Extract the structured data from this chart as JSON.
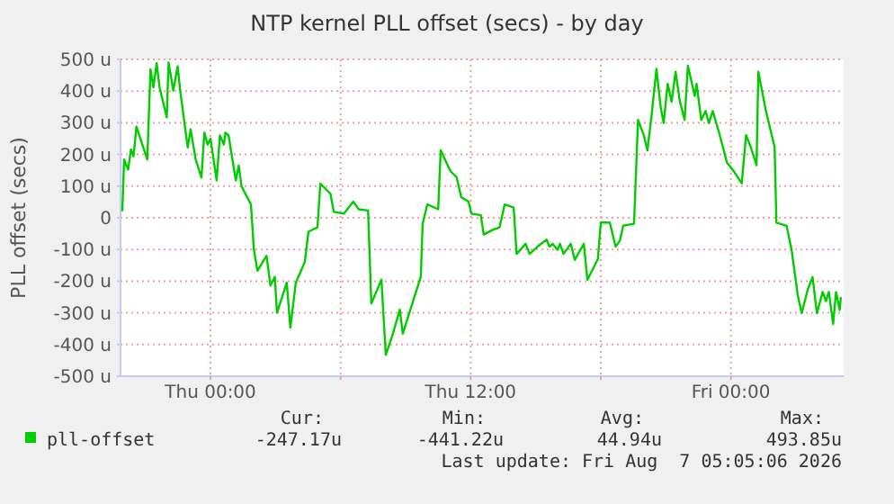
{
  "chart_data": {
    "type": "line",
    "title": "NTP kernel PLL offset (secs) - by day",
    "ylabel": "PLL offset (secs)",
    "xlim": [
      "2026-08-05T19:51",
      "2026-08-07T05:12"
    ],
    "ylim": [
      -500,
      500
    ],
    "xticks": [
      {
        "value": "2026-08-06T00:00",
        "label": "Thu 00:00"
      },
      {
        "value": "2026-08-06T06:00",
        "label": null
      },
      {
        "value": "2026-08-06T12:00",
        "label": "Thu 12:00"
      },
      {
        "value": "2026-08-06T18:00",
        "label": null
      },
      {
        "value": "2026-08-07T00:00",
        "label": "Fri 00:00"
      }
    ],
    "yticks": [
      {
        "value": -500,
        "label": "-500 u"
      },
      {
        "value": -400,
        "label": "-400 u"
      },
      {
        "value": -300,
        "label": "-300 u"
      },
      {
        "value": -200,
        "label": "-200 u"
      },
      {
        "value": -100,
        "label": "-100 u"
      },
      0,
      {
        "value": 100,
        "label": "100 u"
      },
      {
        "value": 200,
        "label": "200 u"
      },
      {
        "value": 300,
        "label": "300 u"
      },
      {
        "value": 400,
        "label": "400 u"
      },
      {
        "value": 500,
        "label": "500 u"
      }
    ],
    "grid": true,
    "legend": "bottom",
    "marker": "none",
    "line_style": "solid",
    "annotations": [
      "Cur:",
      "Min:",
      "Avg:",
      "Max:",
      "-247.17u",
      "-441.22u",
      "44.94u",
      "493.85u",
      "Last update: Fri Aug  7 05:05:06 2026"
    ],
    "series": [
      {
        "name": "pll-offset",
        "color": "#00cc00",
        "x": [
          "2026-08-05T19:56",
          "2026-08-05T20:01",
          "2026-08-05T20:12",
          "2026-08-05T20:20",
          "2026-08-05T20:27",
          "2026-08-05T20:35",
          "2026-08-05T21:05",
          "2026-08-05T21:14",
          "2026-08-05T21:22",
          "2026-08-05T21:31",
          "2026-08-05T21:39",
          "2026-08-05T21:59",
          "2026-08-05T22:04",
          "2026-08-05T22:17",
          "2026-08-05T22:29",
          "2026-08-05T22:37",
          "2026-08-05T22:57",
          "2026-08-05T23:05",
          "2026-08-05T23:19",
          "2026-08-05T23:35",
          "2026-08-05T23:43",
          "2026-08-05T23:52",
          "2026-08-06T00:00",
          "2026-08-06T00:17",
          "2026-08-06T00:26",
          "2026-08-06T00:37",
          "2026-08-06T00:41",
          "2026-08-06T00:50",
          "2026-08-06T00:58",
          "2026-08-06T01:10",
          "2026-08-06T01:18",
          "2026-08-06T01:26",
          "2026-08-06T01:52",
          "2026-08-06T02:00",
          "2026-08-06T02:10",
          "2026-08-06T02:35",
          "2026-08-06T02:46",
          "2026-08-06T02:58",
          "2026-08-06T03:04",
          "2026-08-06T03:31",
          "2026-08-06T03:41",
          "2026-08-06T03:56",
          "2026-08-06T04:21",
          "2026-08-06T04:31",
          "2026-08-06T04:56",
          "2026-08-06T05:04",
          "2026-08-06T05:32",
          "2026-08-06T05:41",
          "2026-08-06T06:09",
          "2026-08-06T06:22",
          "2026-08-06T06:35",
          "2026-08-06T06:50",
          "2026-08-06T07:16",
          "2026-08-06T07:25",
          "2026-08-06T07:53",
          "2026-08-06T08:05",
          "2026-08-06T08:22",
          "2026-08-06T08:44",
          "2026-08-06T08:52",
          "2026-08-06T09:42",
          "2026-08-06T09:47",
          "2026-08-06T10:00",
          "2026-08-06T10:30",
          "2026-08-06T10:37",
          "2026-08-06T11:04",
          "2026-08-06T11:21",
          "2026-08-06T11:34",
          "2026-08-06T11:54",
          "2026-08-06T12:02",
          "2026-08-06T12:28",
          "2026-08-06T12:36",
          "2026-08-06T13:01",
          "2026-08-06T13:20",
          "2026-08-06T13:34",
          "2026-08-06T13:59",
          "2026-08-06T14:07",
          "2026-08-06T14:32",
          "2026-08-06T14:43",
          "2026-08-06T15:05",
          "2026-08-06T15:30",
          "2026-08-06T15:38",
          "2026-08-06T15:47",
          "2026-08-06T16:00",
          "2026-08-06T16:07",
          "2026-08-06T16:17",
          "2026-08-06T16:37",
          "2026-08-06T16:48",
          "2026-08-06T17:13",
          "2026-08-06T17:23",
          "2026-08-06T17:52",
          "2026-08-06T18:00",
          "2026-08-06T18:25",
          "2026-08-06T18:41",
          "2026-08-06T18:53",
          "2026-08-06T19:02",
          "2026-08-06T19:32",
          "2026-08-06T19:43",
          "2026-08-06T19:59",
          "2026-08-06T20:09",
          "2026-08-06T20:21",
          "2026-08-06T20:34",
          "2026-08-06T20:46",
          "2026-08-06T20:54",
          "2026-08-06T21:05",
          "2026-08-06T21:16",
          "2026-08-06T21:27",
          "2026-08-06T21:39",
          "2026-08-06T21:52",
          "2026-08-06T22:01",
          "2026-08-06T22:20",
          "2026-08-06T22:25",
          "2026-08-06T22:38",
          "2026-08-06T22:50",
          "2026-08-06T22:59",
          "2026-08-06T23:10",
          "2026-08-06T23:27",
          "2026-08-06T23:49",
          "2026-08-07T00:08",
          "2026-08-07T00:30",
          "2026-08-07T00:42",
          "2026-08-07T00:55",
          "2026-08-07T01:11",
          "2026-08-07T01:16",
          "2026-08-07T01:37",
          "2026-08-07T02:01",
          "2026-08-07T02:06",
          "2026-08-07T02:34",
          "2026-08-07T02:48",
          "2026-08-07T03:05",
          "2026-08-07T03:16",
          "2026-08-07T03:33",
          "2026-08-07T03:46",
          "2026-08-07T03:58",
          "2026-08-07T04:14",
          "2026-08-07T04:23",
          "2026-08-07T04:31",
          "2026-08-07T04:43",
          "2026-08-07T04:51",
          "2026-08-07T05:01",
          "2026-08-07T05:04"
        ],
        "values": [
          23,
          184,
          152,
          216,
          194,
          288,
          184,
          469,
          412,
          488,
          412,
          317,
          490,
          402,
          478,
          393,
          222,
          279,
          184,
          127,
          269,
          231,
          250,
          118,
          260,
          231,
          269,
          260,
          203,
          118,
          165,
          99,
          42,
          -101,
          -167,
          -120,
          -214,
          -186,
          -300,
          -205,
          -347,
          -205,
          -139,
          -44,
          -30,
          108,
          76,
          19,
          13,
          32,
          51,
          27,
          23,
          -271,
          -195,
          -433,
          -376,
          -290,
          -366,
          -186,
          -19,
          42,
          27,
          213,
          147,
          128,
          65,
          51,
          13,
          8,
          -53,
          -38,
          -30,
          42,
          32,
          -114,
          -82,
          -114,
          -91,
          -69,
          -91,
          -82,
          -101,
          -82,
          -114,
          -82,
          -133,
          -82,
          -196,
          -130,
          -15,
          -15,
          -91,
          -72,
          -25,
          -19,
          309,
          261,
          213,
          328,
          470,
          347,
          299,
          423,
          366,
          461,
          366,
          309,
          480,
          385,
          423,
          309,
          337,
          299,
          337,
          270,
          175,
          147,
          109,
          261,
          223,
          166,
          461,
          337,
          223,
          -15,
          -25,
          -101,
          -244,
          -301,
          -225,
          -187,
          -301,
          -234,
          -263,
          -234,
          -335,
          -234,
          -291,
          -253
        ]
      }
    ]
  }
}
